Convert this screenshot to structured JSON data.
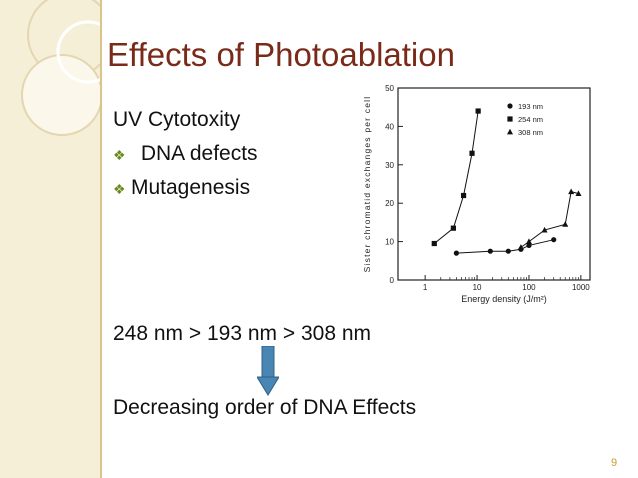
{
  "slide": {
    "title": "Effects of Photoablation",
    "line1": "UV Cytotoxity",
    "bullets": [
      {
        "icon": "diamond-bullet",
        "text": " DNA defects"
      },
      {
        "icon": "diamond-bullet",
        "text": "Mutagenesis"
      }
    ],
    "order_line": "248 nm > 193 nm > 308 nm",
    "conclusion": "Decreasing order of DNA Effects",
    "page_number": "9",
    "arrow_icon": "down-arrow",
    "colors": {
      "title": "#7a2a18",
      "band": "#f6efd8",
      "arrow": "#4a86b4",
      "bullet": "#6a8a20"
    }
  },
  "chart_data": {
    "type": "scatter",
    "xlabel": "Energy density (J/m²)",
    "ylabel": "Sister chromatid exchanges per cell",
    "x_scale": "log",
    "xlim": [
      0.3,
      1500
    ],
    "ylim": [
      0,
      50
    ],
    "x_ticks": [
      1,
      10,
      100,
      1000
    ],
    "x_tick_labels": [
      "1",
      "10",
      "100",
      "1000"
    ],
    "y_ticks": [
      0,
      10,
      20,
      30,
      40,
      50
    ],
    "y_tick_labels": [
      "0",
      "10",
      "20",
      "30",
      "40",
      "50"
    ],
    "grid": false,
    "legend": "top-right",
    "series": [
      {
        "name": "193 nm",
        "marker": "circle",
        "x": [
          4,
          18,
          40,
          70,
          100,
          300
        ],
        "y": [
          7,
          7.5,
          7.5,
          8,
          9,
          10.5
        ]
      },
      {
        "name": "254 nm",
        "marker": "square",
        "x": [
          1.5,
          3.5,
          5.5,
          8,
          10.5
        ],
        "y": [
          9.5,
          13.5,
          22,
          33,
          44
        ]
      },
      {
        "name": "308 nm",
        "marker": "triangle",
        "x": [
          70,
          100,
          200,
          500,
          650,
          900
        ],
        "y": [
          8.5,
          10,
          13,
          14.5,
          23,
          22.5
        ]
      }
    ]
  }
}
